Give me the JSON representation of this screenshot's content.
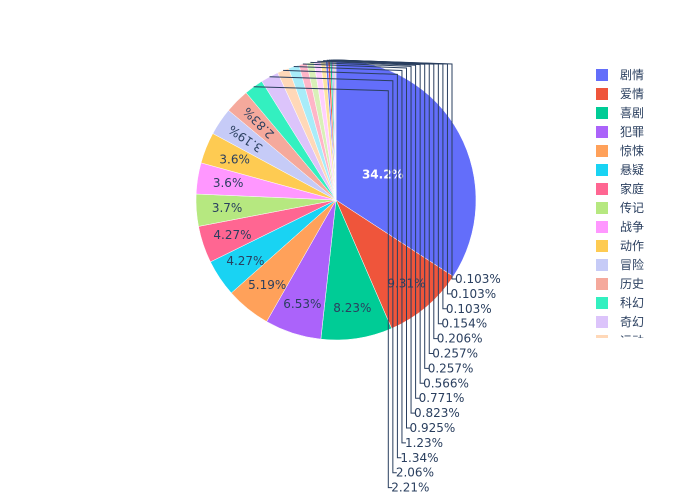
{
  "chart_data": {
    "type": "pie",
    "title": "",
    "legend_position": "right",
    "slices": [
      {
        "label": "剧情",
        "value": 34.2,
        "text": "34.2%",
        "color": "#636efa"
      },
      {
        "label": "爱情",
        "value": 9.31,
        "text": "9.31%",
        "color": "#EF553B"
      },
      {
        "label": "喜剧",
        "value": 8.23,
        "text": "8.23%",
        "color": "#00cc96"
      },
      {
        "label": "犯罪",
        "value": 6.53,
        "text": "6.53%",
        "color": "#ab63fa"
      },
      {
        "label": "惊悚",
        "value": 5.19,
        "text": "5.19%",
        "color": "#FFA15A"
      },
      {
        "label": "悬疑",
        "value": 4.27,
        "text": "4.27%",
        "color": "#19d3f3"
      },
      {
        "label": "家庭",
        "value": 4.27,
        "text": "4.27%",
        "color": "#FF6692"
      },
      {
        "label": "传记",
        "value": 3.7,
        "text": "3.7%",
        "color": "#B6E880"
      },
      {
        "label": "战争",
        "value": 3.6,
        "text": "3.6%",
        "color": "#FF97FF"
      },
      {
        "label": "动作",
        "value": 3.6,
        "text": "3.6%",
        "color": "#FECB52"
      },
      {
        "label": "冒险",
        "value": 3.19,
        "text": "3.19%",
        "color": "#c6cbf7"
      },
      {
        "label": "历史",
        "value": 2.83,
        "text": "2.83%",
        "color": "#f5a99c"
      },
      {
        "label": "科幻",
        "value": 2.21,
        "text": "2.21%",
        "color": "#33f0c0"
      },
      {
        "label": "奇幻",
        "value": 2.06,
        "text": "2.06%",
        "color": "#dcc4fb"
      },
      {
        "label": "运动",
        "value": 1.34,
        "text": "1.34%",
        "color": "#ffd8b8"
      },
      {
        "label": "",
        "value": 1.23,
        "text": "1.23%",
        "color": "#a8ecf9"
      },
      {
        "label": "",
        "value": 0.925,
        "text": "0.925%",
        "color": "#ffb6c8"
      },
      {
        "label": "",
        "value": 0.823,
        "text": "0.823%",
        "color": "#d9f0b8"
      },
      {
        "label": "",
        "value": 0.771,
        "text": "0.771%",
        "color": "#ffd0ff"
      },
      {
        "label": "",
        "value": 0.566,
        "text": "0.566%",
        "color": "#fee4a0"
      },
      {
        "label": "",
        "value": 0.257,
        "text": "0.257%",
        "color": "#636efa"
      },
      {
        "label": "",
        "value": 0.257,
        "text": "0.257%",
        "color": "#EF553B"
      },
      {
        "label": "",
        "value": 0.206,
        "text": "0.206%",
        "color": "#00cc96"
      },
      {
        "label": "",
        "value": 0.154,
        "text": "0.154%",
        "color": "#ab63fa"
      },
      {
        "label": "",
        "value": 0.103,
        "text": "0.103%",
        "color": "#FFA15A"
      },
      {
        "label": "",
        "value": 0.103,
        "text": "0.103%",
        "color": "#19d3f3"
      },
      {
        "label": "",
        "value": 0.103,
        "text": "0.103%",
        "color": "#FF6692"
      }
    ]
  }
}
